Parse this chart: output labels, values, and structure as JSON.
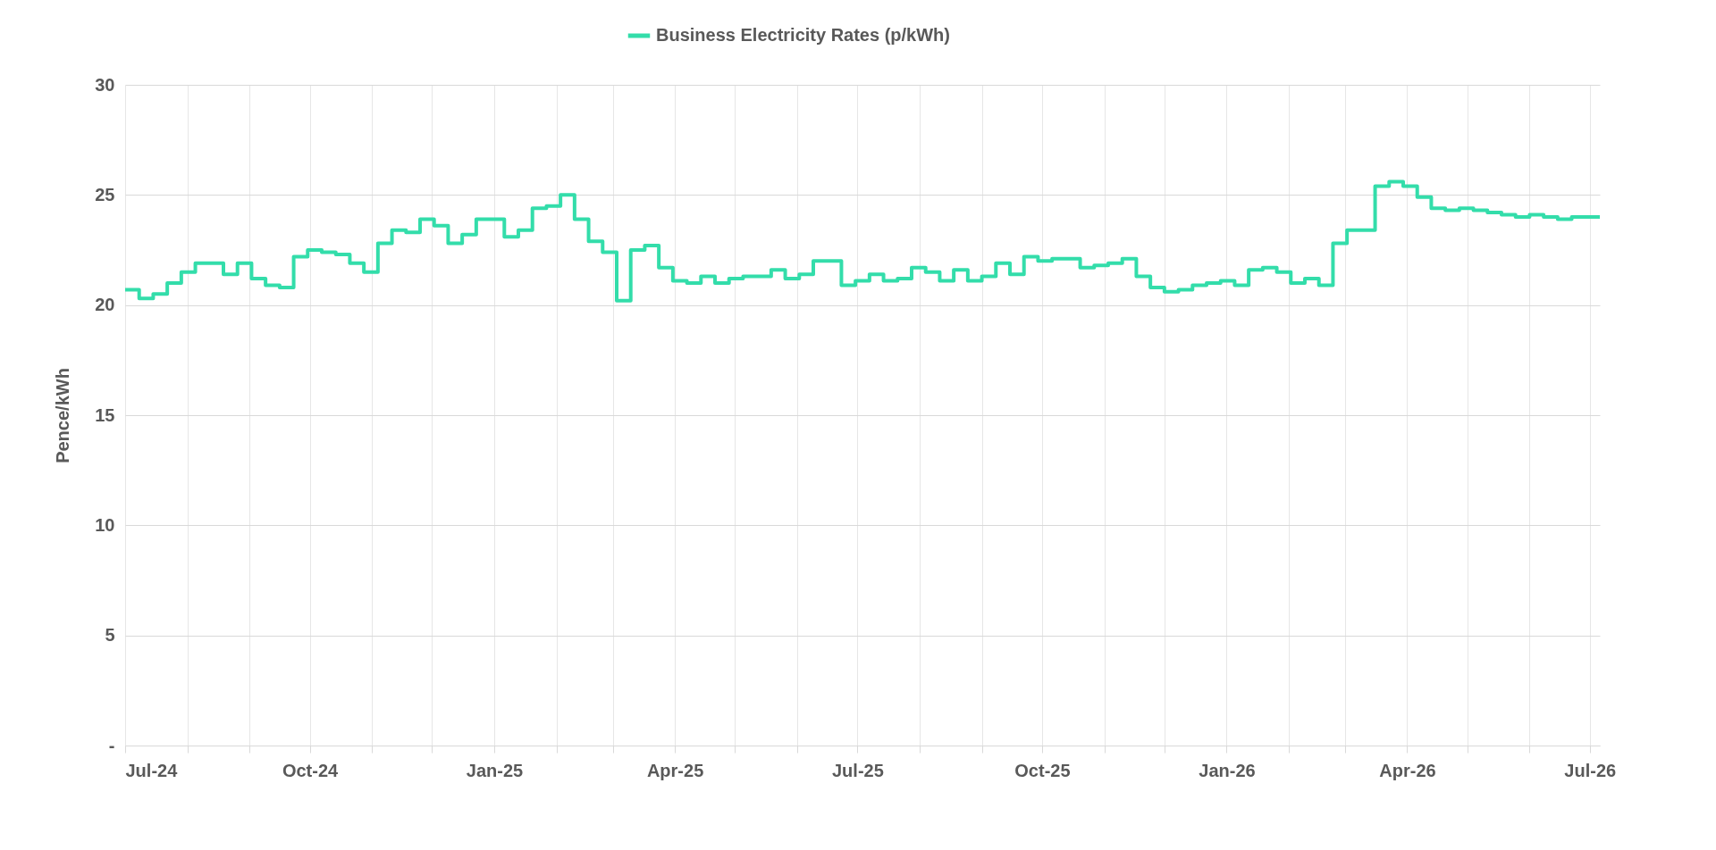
{
  "chart_data": {
    "type": "step",
    "ylabel": "Pence/kWh",
    "series": [
      {
        "name": "Business Electricity Rates (p/kWh)",
        "color": "#33ddaa",
        "x": [
          "2024-07-01",
          "2024-07-08",
          "2024-07-15",
          "2024-07-22",
          "2024-07-29",
          "2024-08-05",
          "2024-08-12",
          "2024-08-19",
          "2024-08-26",
          "2024-09-02",
          "2024-09-09",
          "2024-09-16",
          "2024-09-23",
          "2024-09-30",
          "2024-10-07",
          "2024-10-14",
          "2024-10-21",
          "2024-10-28",
          "2024-11-04",
          "2024-11-11",
          "2024-11-18",
          "2024-11-25",
          "2024-12-02",
          "2024-12-09",
          "2024-12-16",
          "2024-12-23",
          "2024-12-30",
          "2025-01-06",
          "2025-01-13",
          "2025-01-20",
          "2025-01-27",
          "2025-02-03",
          "2025-02-10",
          "2025-02-17",
          "2025-02-24",
          "2025-03-03",
          "2025-03-10",
          "2025-03-17",
          "2025-03-24",
          "2025-03-31",
          "2025-04-07",
          "2025-04-14",
          "2025-04-21",
          "2025-04-28",
          "2025-05-05",
          "2025-05-12",
          "2025-05-19",
          "2025-05-26",
          "2025-06-02",
          "2025-06-09",
          "2025-06-16",
          "2025-06-23",
          "2025-06-30",
          "2025-07-07",
          "2025-07-14",
          "2025-07-21",
          "2025-07-28",
          "2025-08-04",
          "2025-08-11",
          "2025-08-18",
          "2025-08-25",
          "2025-09-01",
          "2025-09-08",
          "2025-09-15",
          "2025-09-22",
          "2025-09-29",
          "2025-10-06",
          "2025-10-13",
          "2025-10-20",
          "2025-10-27",
          "2025-11-03",
          "2025-11-10",
          "2025-11-17",
          "2025-11-24",
          "2025-12-01",
          "2025-12-08",
          "2025-12-15",
          "2025-12-22",
          "2025-12-29",
          "2026-01-05",
          "2026-01-12",
          "2026-01-19",
          "2026-01-26",
          "2026-02-02",
          "2026-02-09",
          "2026-02-16",
          "2026-02-23",
          "2026-03-02",
          "2026-03-09",
          "2026-03-16",
          "2026-03-23",
          "2026-03-30",
          "2026-04-06",
          "2026-04-13",
          "2026-04-20",
          "2026-04-27",
          "2026-05-04",
          "2026-05-11",
          "2026-05-18",
          "2026-05-25",
          "2026-06-01",
          "2026-06-08",
          "2026-06-15",
          "2026-06-22",
          "2026-06-29",
          "2026-07-06"
        ],
        "values": [
          20.7,
          20.3,
          20.5,
          21.0,
          21.5,
          21.9,
          21.9,
          21.4,
          21.9,
          21.2,
          20.9,
          20.8,
          22.2,
          22.5,
          22.4,
          22.3,
          21.9,
          21.5,
          22.8,
          23.4,
          23.3,
          23.9,
          23.6,
          22.8,
          23.2,
          23.9,
          23.9,
          23.1,
          23.4,
          24.4,
          24.5,
          25.0,
          23.9,
          22.9,
          22.4,
          20.2,
          22.5,
          22.7,
          21.7,
          21.1,
          21.0,
          21.3,
          21.0,
          21.2,
          21.3,
          21.3,
          21.6,
          21.2,
          21.4,
          22.0,
          22.0,
          20.9,
          21.1,
          21.4,
          21.1,
          21.2,
          21.7,
          21.5,
          21.1,
          21.6,
          21.1,
          21.3,
          21.9,
          21.4,
          22.2,
          22.0,
          22.1,
          22.1,
          21.7,
          21.8,
          21.9,
          22.1,
          21.3,
          20.8,
          20.6,
          20.7,
          20.9,
          21.0,
          21.1,
          20.9,
          21.6,
          21.7,
          21.5,
          21.0,
          21.2,
          20.9,
          22.8,
          23.4,
          23.4,
          25.4,
          25.6,
          25.4,
          24.9,
          24.4,
          24.3,
          24.4,
          24.3,
          24.2,
          24.1,
          24.0,
          24.1,
          24.0,
          23.9,
          24.0,
          24.0,
          24.0
        ]
      }
    ],
    "xlim": [
      "2024-07-01",
      "2026-07-06"
    ],
    "xticks": [
      {
        "value": "2024-07-01",
        "label": "Jul-24"
      },
      {
        "value": "2024-08-01",
        "label": null
      },
      {
        "value": "2024-09-01",
        "label": null
      },
      {
        "value": "2024-10-01",
        "label": "Oct-24"
      },
      {
        "value": "2024-11-01",
        "label": null
      },
      {
        "value": "2024-12-01",
        "label": null
      },
      {
        "value": "2025-01-01",
        "label": "Jan-25"
      },
      {
        "value": "2025-02-01",
        "label": null
      },
      {
        "value": "2025-03-01",
        "label": null
      },
      {
        "value": "2025-04-01",
        "label": "Apr-25"
      },
      {
        "value": "2025-05-01",
        "label": null
      },
      {
        "value": "2025-06-01",
        "label": null
      },
      {
        "value": "2025-07-01",
        "label": "Jul-25"
      },
      {
        "value": "2025-08-01",
        "label": null
      },
      {
        "value": "2025-09-01",
        "label": null
      },
      {
        "value": "2025-10-01",
        "label": "Oct-25"
      },
      {
        "value": "2025-11-01",
        "label": null
      },
      {
        "value": "2025-12-01",
        "label": null
      },
      {
        "value": "2026-01-01",
        "label": "Jan-26"
      },
      {
        "value": "2026-02-01",
        "label": null
      },
      {
        "value": "2026-03-01",
        "label": null
      },
      {
        "value": "2026-04-01",
        "label": "Apr-26"
      },
      {
        "value": "2026-05-01",
        "label": null
      },
      {
        "value": "2026-06-01",
        "label": null
      },
      {
        "value": "2026-07-01",
        "label": "Jul-26"
      }
    ],
    "ylim": [
      0,
      30
    ],
    "yticks": [
      {
        "value": 0,
        "label": "-"
      },
      5,
      10,
      15,
      20,
      25,
      30
    ],
    "grid": true,
    "legend": "top"
  }
}
